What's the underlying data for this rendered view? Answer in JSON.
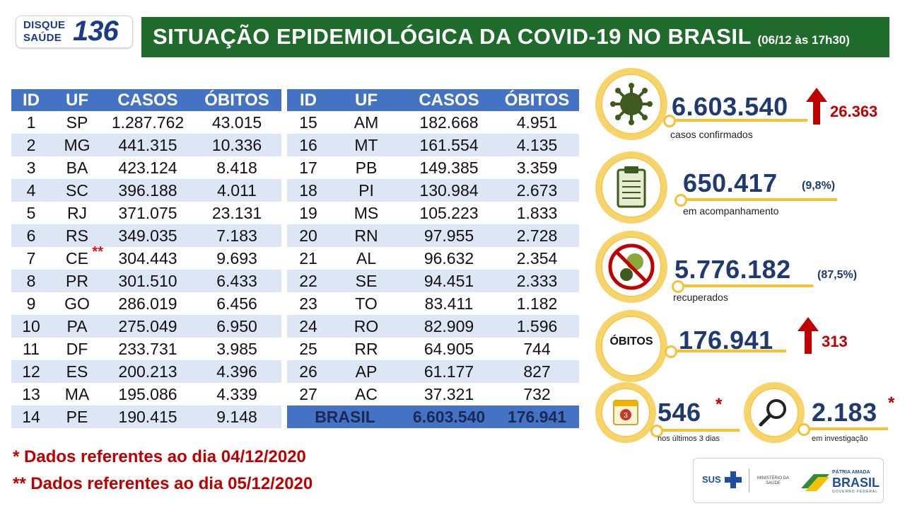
{
  "logo": {
    "line1": "DISQUE",
    "line2": "SAÚDE",
    "number": "136"
  },
  "banner": {
    "title": "SITUAÇÃO EPIDEMIOLÓGICA DA COVID-19 NO BRASIL",
    "subtitle": "(06/12 às 17h30)"
  },
  "table": {
    "headers": [
      "ID",
      "UF",
      "CASOS",
      "ÓBITOS"
    ],
    "left_rows": [
      [
        "1",
        "SP",
        "1.287.762",
        "43.015"
      ],
      [
        "2",
        "MG",
        "441.315",
        "10.336"
      ],
      [
        "3",
        "BA",
        "423.124",
        "8.418"
      ],
      [
        "4",
        "SC",
        "396.188",
        "4.011"
      ],
      [
        "5",
        "RJ",
        "371.075",
        "23.131"
      ],
      [
        "6",
        "RS",
        "349.035",
        "7.183"
      ],
      [
        "7",
        "CE",
        "304.443",
        "9.693"
      ],
      [
        "8",
        "PR",
        "301.510",
        "6.433"
      ],
      [
        "9",
        "GO",
        "286.019",
        "6.456"
      ],
      [
        "10",
        "PA",
        "275.049",
        "6.950"
      ],
      [
        "11",
        "DF",
        "233.731",
        "3.985"
      ],
      [
        "12",
        "ES",
        "200.213",
        "4.396"
      ],
      [
        "13",
        "MA",
        "195.086",
        "4.339"
      ],
      [
        "14",
        "PE",
        "190.415",
        "9.148"
      ]
    ],
    "ce_note": "**",
    "right_rows": [
      [
        "15",
        "AM",
        "182.668",
        "4.951"
      ],
      [
        "16",
        "MT",
        "161.554",
        "4.135"
      ],
      [
        "17",
        "PB",
        "149.385",
        "3.359"
      ],
      [
        "18",
        "PI",
        "130.984",
        "2.673"
      ],
      [
        "19",
        "MS",
        "105.223",
        "1.833"
      ],
      [
        "20",
        "RN",
        "97.955",
        "2.728"
      ],
      [
        "21",
        "AL",
        "96.632",
        "2.354"
      ],
      [
        "22",
        "SE",
        "94.451",
        "2.333"
      ],
      [
        "23",
        "TO",
        "83.411",
        "1.182"
      ],
      [
        "24",
        "RO",
        "82.909",
        "1.596"
      ],
      [
        "25",
        "RR",
        "64.905",
        "744"
      ],
      [
        "26",
        "AP",
        "61.177",
        "827"
      ],
      [
        "27",
        "AC",
        "37.321",
        "732"
      ]
    ],
    "total": {
      "label": "BRASIL",
      "casos": "6.603.540",
      "obitos": "176.941"
    }
  },
  "footnotes": {
    "note1": "* Dados referentes ao dia 04/12/2020",
    "note2": "** Dados referentes ao dia 05/12/2020"
  },
  "stats": {
    "confirmed": {
      "value": "6.603.540",
      "delta": "26.363",
      "label": "casos confirmados",
      "icon": "virus-icon"
    },
    "monitoring": {
      "value": "650.417",
      "pct": "(9,8%)",
      "label": "em acompanhamento",
      "icon": "clipboard-icon"
    },
    "recovered": {
      "value": "5.776.182",
      "pct": "(87,5%)",
      "label": "recuperados",
      "icon": "no-virus-icon"
    },
    "deaths": {
      "badge": "ÓBITOS",
      "value": "176.941",
      "delta": "313"
    },
    "last3": {
      "value": "546",
      "star": "*",
      "label": "nos últimos 3 dias",
      "icon": "calendar-icon",
      "calendar_day": "3"
    },
    "investigation": {
      "value": "2.183",
      "star": "*",
      "label": "em investigação",
      "icon": "magnifier-icon"
    }
  },
  "gov": {
    "sus": "SUS",
    "ministry_line1": "MINISTÉRIO DA",
    "ministry_line2": "SAÚDE",
    "pa1": "PÁTRIA AMADA",
    "pa2": "BRASIL",
    "pa3": "GOVERNO FEDERAL"
  },
  "colors": {
    "banner_green": "#1e6b2c",
    "table_blue": "#4472c4",
    "row_alt": "#dde6f4",
    "accent_red": "#c00000",
    "ring_yellow": "#f6d46a",
    "number_navy": "#1f3a73"
  }
}
